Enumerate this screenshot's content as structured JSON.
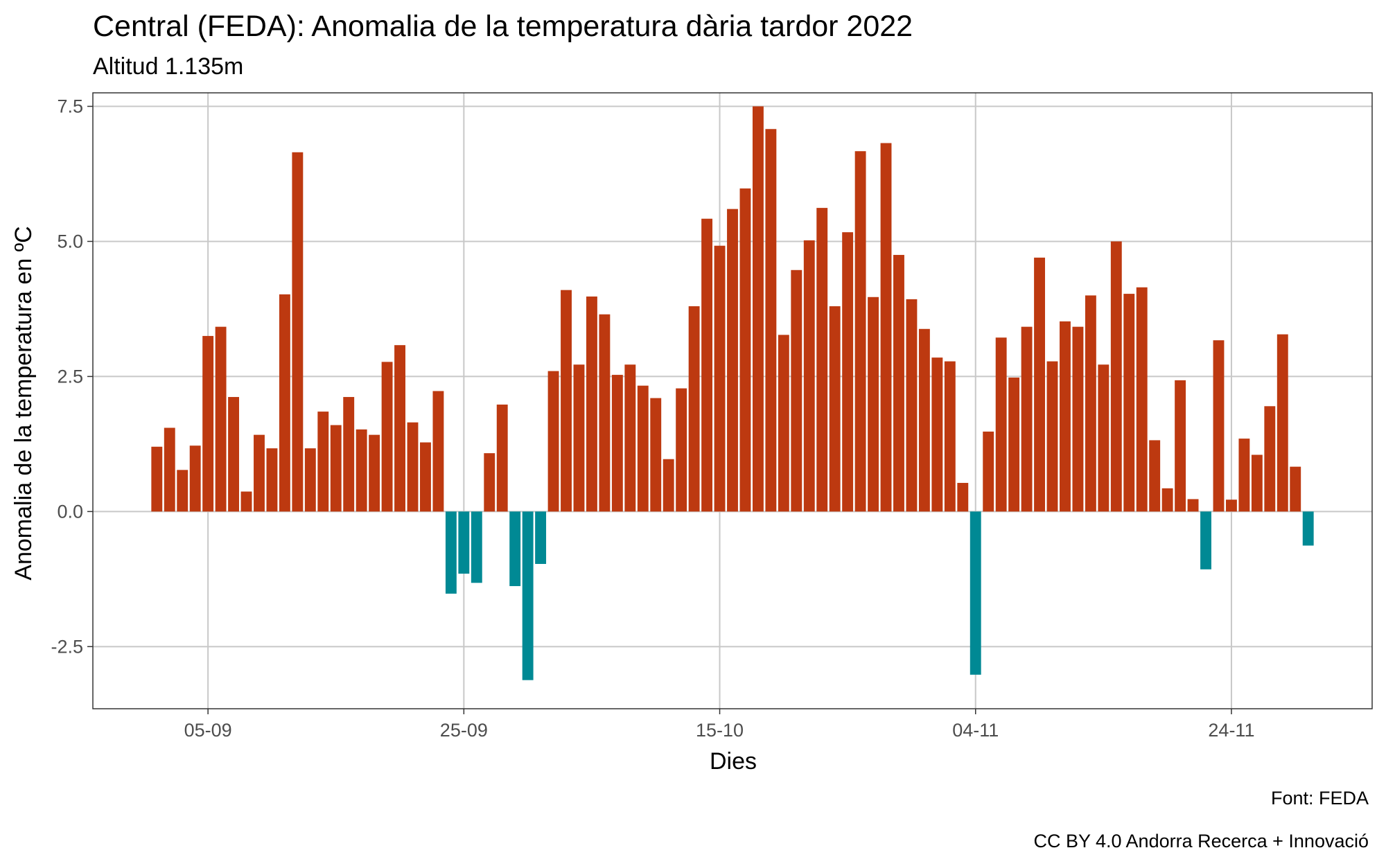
{
  "chart_data": {
    "type": "bar",
    "title": "Central (FEDA): Anomalia de la temperatura dària tardor 2022",
    "subtitle": "Altitud 1.135m",
    "xlabel": "Dies",
    "ylabel": "Anomalia de la temperatura en ºC",
    "caption_source": "Font: FEDA",
    "caption_license": "CC BY 4.0 Andorra Recerca + Innovació",
    "x_start_date": "2022-09-01",
    "x_ticks": [
      {
        "date": "2022-09-05",
        "label": "05-09"
      },
      {
        "date": "2022-09-25",
        "label": "25-09"
      },
      {
        "date": "2022-10-15",
        "label": "15-10"
      },
      {
        "date": "2022-11-04",
        "label": "04-11"
      },
      {
        "date": "2022-11-24",
        "label": "24-11"
      }
    ],
    "y_ticks": [
      {
        "value": 7.5,
        "label": "7.5"
      },
      {
        "value": 5.0,
        "label": "5.0"
      },
      {
        "value": 2.5,
        "label": "2.5"
      },
      {
        "value": 0.0,
        "label": "0.0"
      },
      {
        "value": -2.5,
        "label": "-2.5"
      }
    ],
    "ylim": [
      -3.65,
      7.75
    ],
    "xlim": [
      "2022-08-27",
      "2022-12-05"
    ],
    "grid": true,
    "colors": {
      "positive": "#BD3910",
      "negative": "#008994",
      "grid": "#C8C8C8",
      "panel_border": "#333333"
    },
    "values": [
      1.2,
      1.55,
      0.77,
      1.22,
      3.25,
      3.42,
      2.12,
      0.37,
      1.42,
      1.17,
      4.02,
      6.65,
      1.17,
      1.85,
      1.6,
      2.12,
      1.52,
      1.42,
      2.77,
      3.08,
      1.65,
      1.28,
      2.23,
      -1.52,
      -1.15,
      -1.32,
      1.08,
      1.98,
      -1.38,
      -3.12,
      -0.97,
      2.6,
      4.1,
      2.72,
      3.98,
      3.65,
      2.53,
      2.72,
      2.33,
      2.1,
      0.97,
      2.28,
      3.8,
      5.42,
      4.92,
      5.6,
      5.98,
      7.5,
      7.08,
      3.27,
      4.47,
      5.02,
      5.62,
      3.8,
      5.17,
      6.67,
      3.97,
      6.82,
      4.75,
      3.93,
      3.38,
      2.85,
      2.78,
      0.53,
      -3.02,
      1.48,
      3.22,
      2.48,
      3.42,
      4.7,
      2.78,
      3.52,
      3.42,
      4.0,
      2.72,
      5.0,
      4.03,
      4.15,
      1.32,
      0.43,
      2.43,
      0.23,
      -1.07,
      3.17,
      0.22,
      1.35,
      1.05,
      1.95,
      3.28,
      0.83,
      -0.63
    ]
  }
}
